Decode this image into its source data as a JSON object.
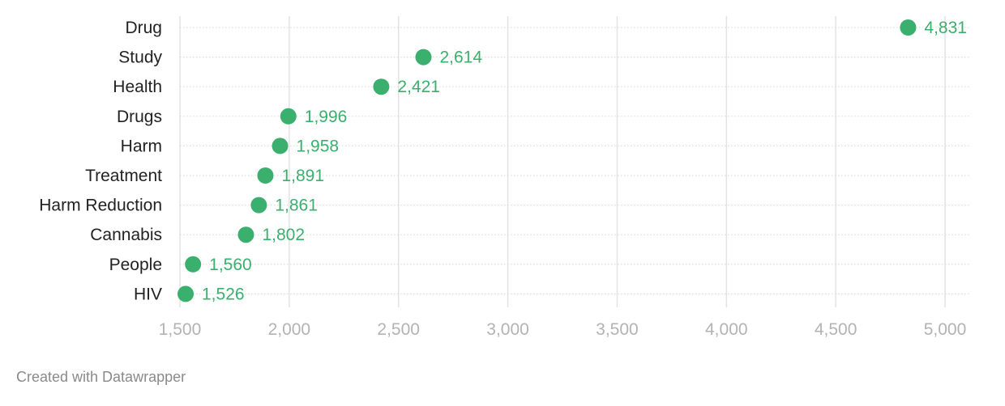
{
  "chart_data": {
    "type": "scatter",
    "orientation": "horizontal-dot",
    "categories": [
      "Drug",
      "Study",
      "Health",
      "Drugs",
      "Harm",
      "Treatment",
      "Harm Reduction",
      "Cannabis",
      "People",
      "HIV"
    ],
    "values": [
      4831,
      2614,
      2421,
      1996,
      1958,
      1891,
      1861,
      1802,
      1560,
      1526
    ],
    "value_labels": [
      "4,831",
      "2,614",
      "2,421",
      "1,996",
      "1,958",
      "1,891",
      "1,861",
      "1,802",
      "1,560",
      "1,526"
    ],
    "xlim": [
      1500,
      5000
    ],
    "x_ticks": [
      1500,
      2000,
      2500,
      3000,
      3500,
      4000,
      4500,
      5000
    ],
    "x_tick_labels": [
      "1,500",
      "2,000",
      "2,500",
      "3,000",
      "3,500",
      "4,000",
      "4,500",
      "5,000"
    ],
    "grid": true,
    "title": "",
    "xlabel": "",
    "ylabel": "",
    "colors": {
      "dot": "#3aaf6e",
      "value_text": "#3aaf6e",
      "grid_major": "#e3e3e3",
      "grid_row": "#d7d7d7"
    }
  },
  "footer": {
    "credit": "Created with Datawrapper"
  }
}
